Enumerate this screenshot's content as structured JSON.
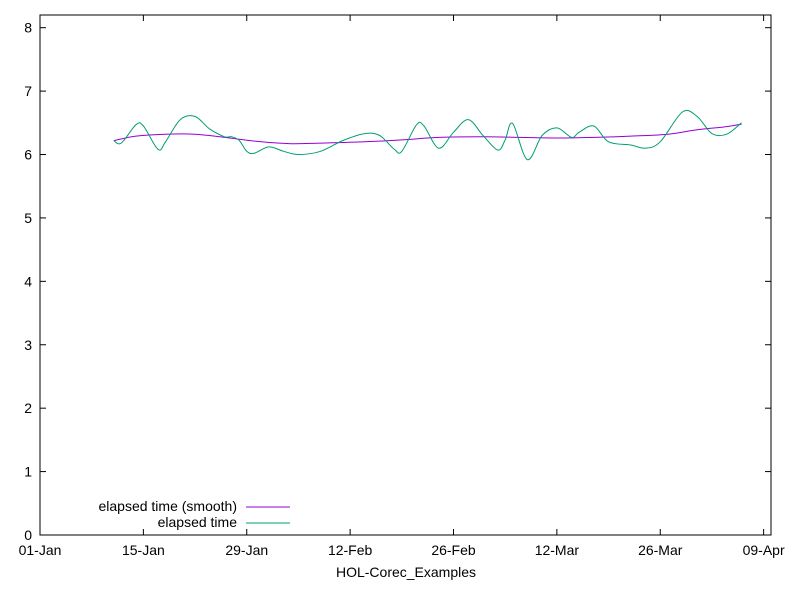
{
  "chart_data": {
    "type": "line",
    "title": "",
    "xlabel": "HOL-Corec_Examples",
    "ylabel": "",
    "x_ticks": [
      "01-Jan",
      "15-Jan",
      "29-Jan",
      "12-Feb",
      "26-Feb",
      "12-Mar",
      "26-Mar",
      "09-Apr"
    ],
    "y_ticks": [
      "0",
      "1",
      "2",
      "3",
      "4",
      "5",
      "6",
      "7",
      "8"
    ],
    "xlim": [
      "2024-01-01",
      "2024-04-09"
    ],
    "ylim": [
      0,
      8.2
    ],
    "grid": false,
    "legend_position": "bottom-left",
    "colors": {
      "smooth": "#9400d3",
      "raw": "#009e73"
    },
    "series": [
      {
        "name": "elapsed time (smooth)",
        "color": "#9400d3",
        "x": [
          "2024-01-11",
          "2024-01-14",
          "2024-01-18",
          "2024-01-22",
          "2024-01-26",
          "2024-01-31",
          "2024-02-04",
          "2024-02-08",
          "2024-02-14",
          "2024-02-19",
          "2024-02-24",
          "2024-03-01",
          "2024-03-06",
          "2024-03-11",
          "2024-03-16",
          "2024-03-21",
          "2024-03-26",
          "2024-03-30",
          "2024-04-03",
          "2024-04-05"
        ],
        "values": [
          6.22,
          6.29,
          6.32,
          6.32,
          6.27,
          6.2,
          6.17,
          6.18,
          6.2,
          6.23,
          6.27,
          6.28,
          6.27,
          6.26,
          6.27,
          6.29,
          6.32,
          6.39,
          6.44,
          6.48
        ]
      },
      {
        "name": "elapsed time",
        "color": "#009e73",
        "x": [
          "2024-01-11",
          "2024-01-12",
          "2024-01-14",
          "2024-01-15",
          "2024-01-17",
          "2024-01-18",
          "2024-01-20",
          "2024-01-22",
          "2024-01-24",
          "2024-01-26",
          "2024-01-27",
          "2024-01-28",
          "2024-01-29",
          "2024-01-30",
          "2024-02-01",
          "2024-02-03",
          "2024-02-05",
          "2024-02-08",
          "2024-02-11",
          "2024-02-14",
          "2024-02-16",
          "2024-02-18",
          "2024-02-19",
          "2024-02-21",
          "2024-02-22",
          "2024-02-24",
          "2024-02-26",
          "2024-02-28",
          "2024-03-01",
          "2024-03-03",
          "2024-03-04",
          "2024-03-05",
          "2024-03-07",
          "2024-03-09",
          "2024-03-11",
          "2024-03-13",
          "2024-03-14",
          "2024-03-16",
          "2024-03-18",
          "2024-03-21",
          "2024-03-23",
          "2024-03-25",
          "2024-03-28",
          "2024-03-30",
          "2024-04-01",
          "2024-04-03",
          "2024-04-05"
        ],
        "values": [
          6.22,
          6.18,
          6.47,
          6.45,
          6.08,
          6.2,
          6.55,
          6.6,
          6.4,
          6.28,
          6.28,
          6.22,
          6.05,
          6.02,
          6.12,
          6.05,
          6.0,
          6.05,
          6.22,
          6.33,
          6.3,
          6.08,
          6.05,
          6.47,
          6.45,
          6.1,
          6.35,
          6.55,
          6.3,
          6.07,
          6.23,
          6.49,
          5.92,
          6.3,
          6.42,
          6.27,
          6.35,
          6.45,
          6.2,
          6.15,
          6.1,
          6.2,
          6.67,
          6.6,
          6.33,
          6.32,
          6.5
        ]
      }
    ]
  }
}
